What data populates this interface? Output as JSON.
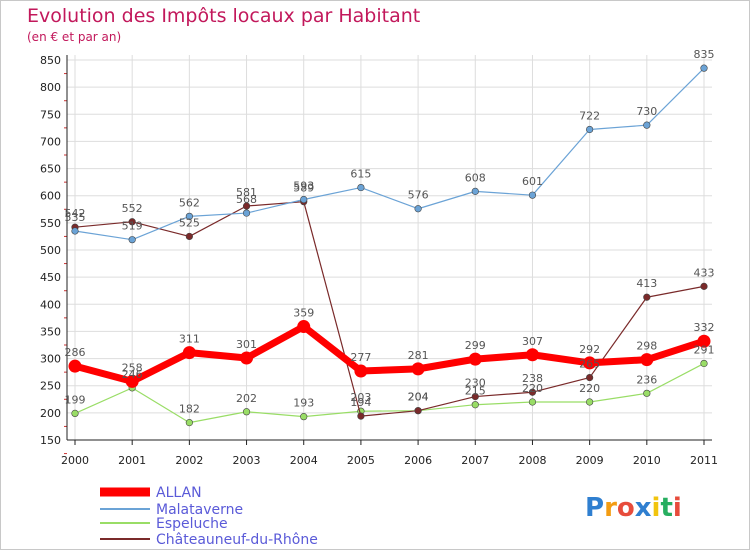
{
  "title": "Evolution des Impôts locaux par Habitant",
  "subtitle": "(en € et par an)",
  "logo_text": "Proxiti",
  "chart_data": {
    "type": "line",
    "x": [
      "2000",
      "2001",
      "2002",
      "2003",
      "2004",
      "2005",
      "2006",
      "2007",
      "2008",
      "2009",
      "2010",
      "2011"
    ],
    "ylim": [
      150,
      850
    ],
    "yticks": [
      150,
      200,
      250,
      300,
      350,
      400,
      450,
      500,
      550,
      600,
      650,
      700,
      750,
      800,
      850
    ],
    "xlabel": "",
    "ylabel": "",
    "grid": true,
    "series": [
      {
        "name": "ALLAN",
        "color": "#ff0000",
        "values": [
          286,
          258,
          311,
          301,
          359,
          277,
          281,
          299,
          307,
          292,
          298,
          332
        ]
      },
      {
        "name": "Malataverne",
        "color": "#6ba3d6",
        "values": [
          535,
          519,
          562,
          568,
          593,
          615,
          576,
          608,
          601,
          722,
          730,
          835
        ]
      },
      {
        "name": "Espeluche",
        "color": "#99dd66",
        "values": [
          199,
          246,
          182,
          202,
          193,
          203,
          204,
          215,
          220,
          220,
          236,
          291
        ]
      },
      {
        "name": "Châteauneuf-du-Rhône",
        "color": "#7a2a2a",
        "values": [
          542,
          552,
          525,
          581,
          589,
          194,
          204,
          230,
          238,
          265,
          413,
          433
        ]
      }
    ],
    "point_labels": [
      {
        "series": "ALLAN",
        "labels": [
          "286",
          "258",
          "311",
          "301",
          "359",
          "277",
          "281",
          "299",
          "307",
          "292",
          "298",
          "332"
        ]
      },
      {
        "series": "Malataverne",
        "labels": [
          "535",
          "519",
          "562",
          "568",
          "593",
          "615",
          "576",
          "608",
          "601",
          "722",
          "730",
          "835"
        ]
      },
      {
        "series": "Espeluche",
        "labels": [
          "199",
          "246",
          "182",
          "202",
          "193",
          "203",
          "204",
          "215",
          "220",
          "220",
          "236",
          "291"
        ]
      },
      {
        "series": "Châteauneuf-du-Rhône",
        "labels": [
          "542",
          "552",
          "525",
          "581",
          "589",
          "194",
          "204",
          "230",
          "238",
          "265",
          "413",
          "433"
        ]
      }
    ]
  }
}
